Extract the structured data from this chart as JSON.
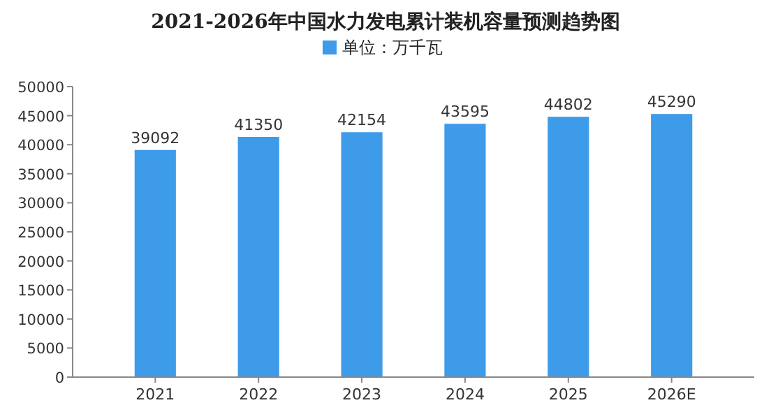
{
  "chart_data": {
    "type": "bar",
    "title": "2021-2026年中国水力发电累计装机容量预测趋势图",
    "categories": [
      "2021",
      "2022",
      "2023",
      "2024",
      "2025",
      "2026E"
    ],
    "series": [
      {
        "name": "单位：万千瓦",
        "color": "#3d9be9",
        "values": [
          39092,
          41350,
          42154,
          43595,
          44802,
          45290
        ]
      }
    ],
    "ylim": [
      0,
      50000
    ],
    "yticks": [
      0,
      5000,
      10000,
      15000,
      20000,
      25000,
      30000,
      35000,
      40000,
      45000,
      50000
    ],
    "data_labels": true,
    "legend": "top",
    "grid": false
  }
}
